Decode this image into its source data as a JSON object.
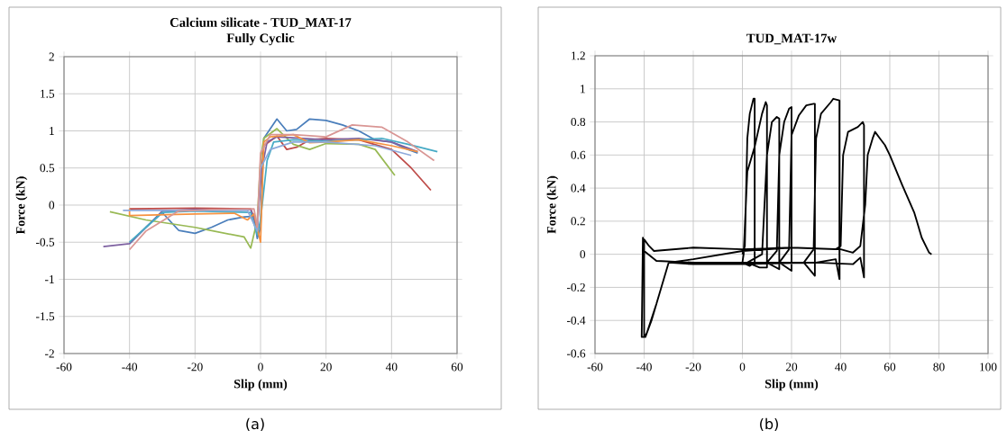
{
  "chart_data": [
    {
      "type": "line",
      "title": "Calcium silicate - TUD_MAT-17",
      "subtitle": "Fully Cyclic",
      "xlabel": "Slip (mm)",
      "ylabel": "Force (kN)",
      "annotations": [
        "(a)"
      ],
      "xlim": [
        -60,
        60
      ],
      "ylim": [
        -2,
        2
      ],
      "xticks": [
        -60,
        -40,
        -20,
        0,
        20,
        40,
        60
      ],
      "yticks": [
        -2,
        -1.5,
        -1,
        -0.5,
        0,
        0.5,
        1,
        1.5,
        2
      ],
      "grid": true,
      "series": [
        {
          "color": "#4a7ebb",
          "x": [
            -40,
            -35,
            -30,
            -25,
            -20,
            -15,
            -10,
            -5,
            -2,
            -1,
            0,
            1,
            5,
            8,
            11,
            15,
            20,
            25,
            30,
            35,
            40,
            45,
            48
          ],
          "values": [
            -0.52,
            -0.3,
            -0.1,
            -0.34,
            -0.38,
            -0.3,
            -0.2,
            -0.16,
            -0.15,
            -0.45,
            -0.3,
            0.9,
            1.16,
            1.0,
            1.02,
            1.16,
            1.14,
            1.08,
            1.0,
            0.88,
            0.85,
            0.75,
            0.7
          ]
        },
        {
          "color": "#be4b48",
          "x": [
            -40,
            -20,
            -3,
            -1,
            0,
            1,
            5,
            8,
            11,
            15,
            20,
            30,
            40,
            46,
            52
          ],
          "values": [
            -0.05,
            -0.04,
            -0.05,
            -0.3,
            0.3,
            0.8,
            0.93,
            0.75,
            0.78,
            0.88,
            0.9,
            0.88,
            0.75,
            0.5,
            0.2
          ]
        },
        {
          "color": "#98b954",
          "x": [
            -46,
            -35,
            -20,
            -5,
            -3,
            -1,
            0,
            1,
            5,
            10,
            15,
            20,
            30,
            35,
            41
          ],
          "values": [
            -0.09,
            -0.2,
            -0.3,
            -0.43,
            -0.58,
            -0.2,
            0.6,
            0.9,
            1.03,
            0.82,
            0.75,
            0.83,
            0.82,
            0.75,
            0.4
          ]
        },
        {
          "color": "#7d60a0",
          "x": [
            -48,
            -40,
            -35,
            -30,
            -20,
            -3,
            -1,
            0,
            2,
            5,
            20,
            30,
            40,
            48
          ],
          "values": [
            -0.56,
            -0.52,
            -0.3,
            -0.08,
            -0.06,
            -0.06,
            -0.3,
            0.4,
            0.85,
            0.92,
            0.88,
            0.9,
            0.85,
            0.72
          ]
        },
        {
          "color": "#46aac5",
          "x": [
            -40,
            -35,
            -30,
            -20,
            -3,
            -1,
            0,
            2,
            4,
            10,
            20,
            30,
            37,
            45,
            54
          ],
          "values": [
            -0.5,
            -0.3,
            -0.1,
            -0.08,
            -0.1,
            -0.4,
            -0.2,
            0.6,
            0.85,
            0.88,
            0.86,
            0.88,
            0.9,
            0.82,
            0.72
          ]
        },
        {
          "color": "#f69240",
          "x": [
            -40,
            -40,
            -20,
            -8,
            -4,
            -2,
            0,
            1,
            3,
            10,
            15,
            20,
            30,
            40,
            48
          ],
          "values": [
            -0.05,
            -0.14,
            -0.12,
            -0.11,
            -0.2,
            -0.12,
            -0.5,
            0.85,
            0.92,
            0.95,
            0.84,
            0.85,
            0.88,
            0.8,
            0.72
          ]
        },
        {
          "color": "#8da9db",
          "x": [
            -42,
            -20,
            -4,
            -1,
            0,
            3,
            10,
            20,
            35,
            46
          ],
          "values": [
            -0.07,
            -0.07,
            -0.07,
            -0.35,
            0.5,
            0.75,
            0.85,
            0.85,
            0.8,
            0.67
          ]
        },
        {
          "color": "#d99694",
          "x": [
            -40,
            -35,
            -25,
            -15,
            -2,
            -1,
            0,
            3,
            10,
            20,
            28,
            37,
            45,
            53
          ],
          "values": [
            -0.6,
            -0.35,
            -0.08,
            -0.06,
            -0.05,
            -0.3,
            0.7,
            0.95,
            0.95,
            0.92,
            1.08,
            1.05,
            0.85,
            0.6
          ]
        }
      ]
    },
    {
      "type": "line",
      "title": "TUD_MAT-17w",
      "xlabel": "Slip (mm)",
      "ylabel": "Force (kN)",
      "annotations": [
        "(b)"
      ],
      "xlim": [
        -60,
        100
      ],
      "ylim": [
        -0.6,
        1.2
      ],
      "xticks": [
        -60,
        -40,
        -20,
        0,
        20,
        40,
        60,
        80,
        100
      ],
      "yticks": [
        -0.6,
        -0.4,
        -0.2,
        0,
        0.2,
        0.4,
        0.6,
        0.8,
        1,
        1.2
      ],
      "grid": true,
      "series": [
        {
          "color": "#000000",
          "x": [
            0,
            1,
            2,
            3,
            4.5,
            5,
            5,
            3,
            0,
            0.5,
            2,
            5,
            8,
            9.5,
            10,
            10,
            7,
            2,
            8,
            10,
            12,
            14,
            15,
            15,
            10,
            14,
            15,
            17,
            19,
            20,
            20,
            15,
            19,
            20,
            23,
            26,
            29,
            29.5,
            29.5,
            25,
            29,
            30,
            32,
            36,
            37,
            39.5,
            39.5,
            38,
            30,
            -20,
            -35,
            -40,
            -40.5,
            -41,
            -40,
            -39.5,
            -37,
            -30,
            -20,
            0,
            20,
            38,
            40,
            41,
            43,
            47,
            49,
            49.5,
            49.5,
            48,
            45,
            30,
            0,
            -20,
            -30,
            -35,
            -39,
            -40,
            -40,
            -38,
            -36,
            -20,
            0,
            20,
            40,
            45,
            48,
            50,
            51,
            53,
            54,
            56,
            58,
            60,
            65,
            70,
            73,
            76,
            77
          ],
          "values": [
            0,
            0.05,
            0.7,
            0.85,
            0.94,
            0.94,
            -0.05,
            -0.07,
            -0.05,
            0,
            0.5,
            0.65,
            0.85,
            0.92,
            0.9,
            -0.08,
            -0.08,
            -0.05,
            0,
            0.6,
            0.8,
            0.83,
            0.82,
            -0.09,
            -0.05,
            0.02,
            0.6,
            0.8,
            0.88,
            0.89,
            -0.1,
            -0.05,
            0.03,
            0.72,
            0.84,
            0.9,
            0.91,
            0.91,
            -0.13,
            -0.05,
            0.03,
            0.7,
            0.85,
            0.92,
            0.94,
            0.93,
            -0.15,
            -0.03,
            -0.05,
            -0.05,
            -0.04,
            0.02,
            0.1,
            -0.5,
            -0.5,
            -0.5,
            -0.4,
            -0.05,
            -0.03,
            0.02,
            0.04,
            0.03,
            0.05,
            0.6,
            0.74,
            0.77,
            0.8,
            0.78,
            -0.14,
            -0.02,
            -0.06,
            -0.05,
            -0.06,
            -0.06,
            -0.05,
            -0.3,
            -0.48,
            -0.5,
            0.09,
            0.05,
            0.02,
            0.04,
            0.03,
            0.04,
            0.03,
            0.01,
            0.05,
            0.3,
            0.6,
            0.7,
            0.74,
            0.7,
            0.66,
            0.6,
            0.42,
            0.25,
            0.1,
            0.01,
            0
          ]
        }
      ]
    }
  ]
}
